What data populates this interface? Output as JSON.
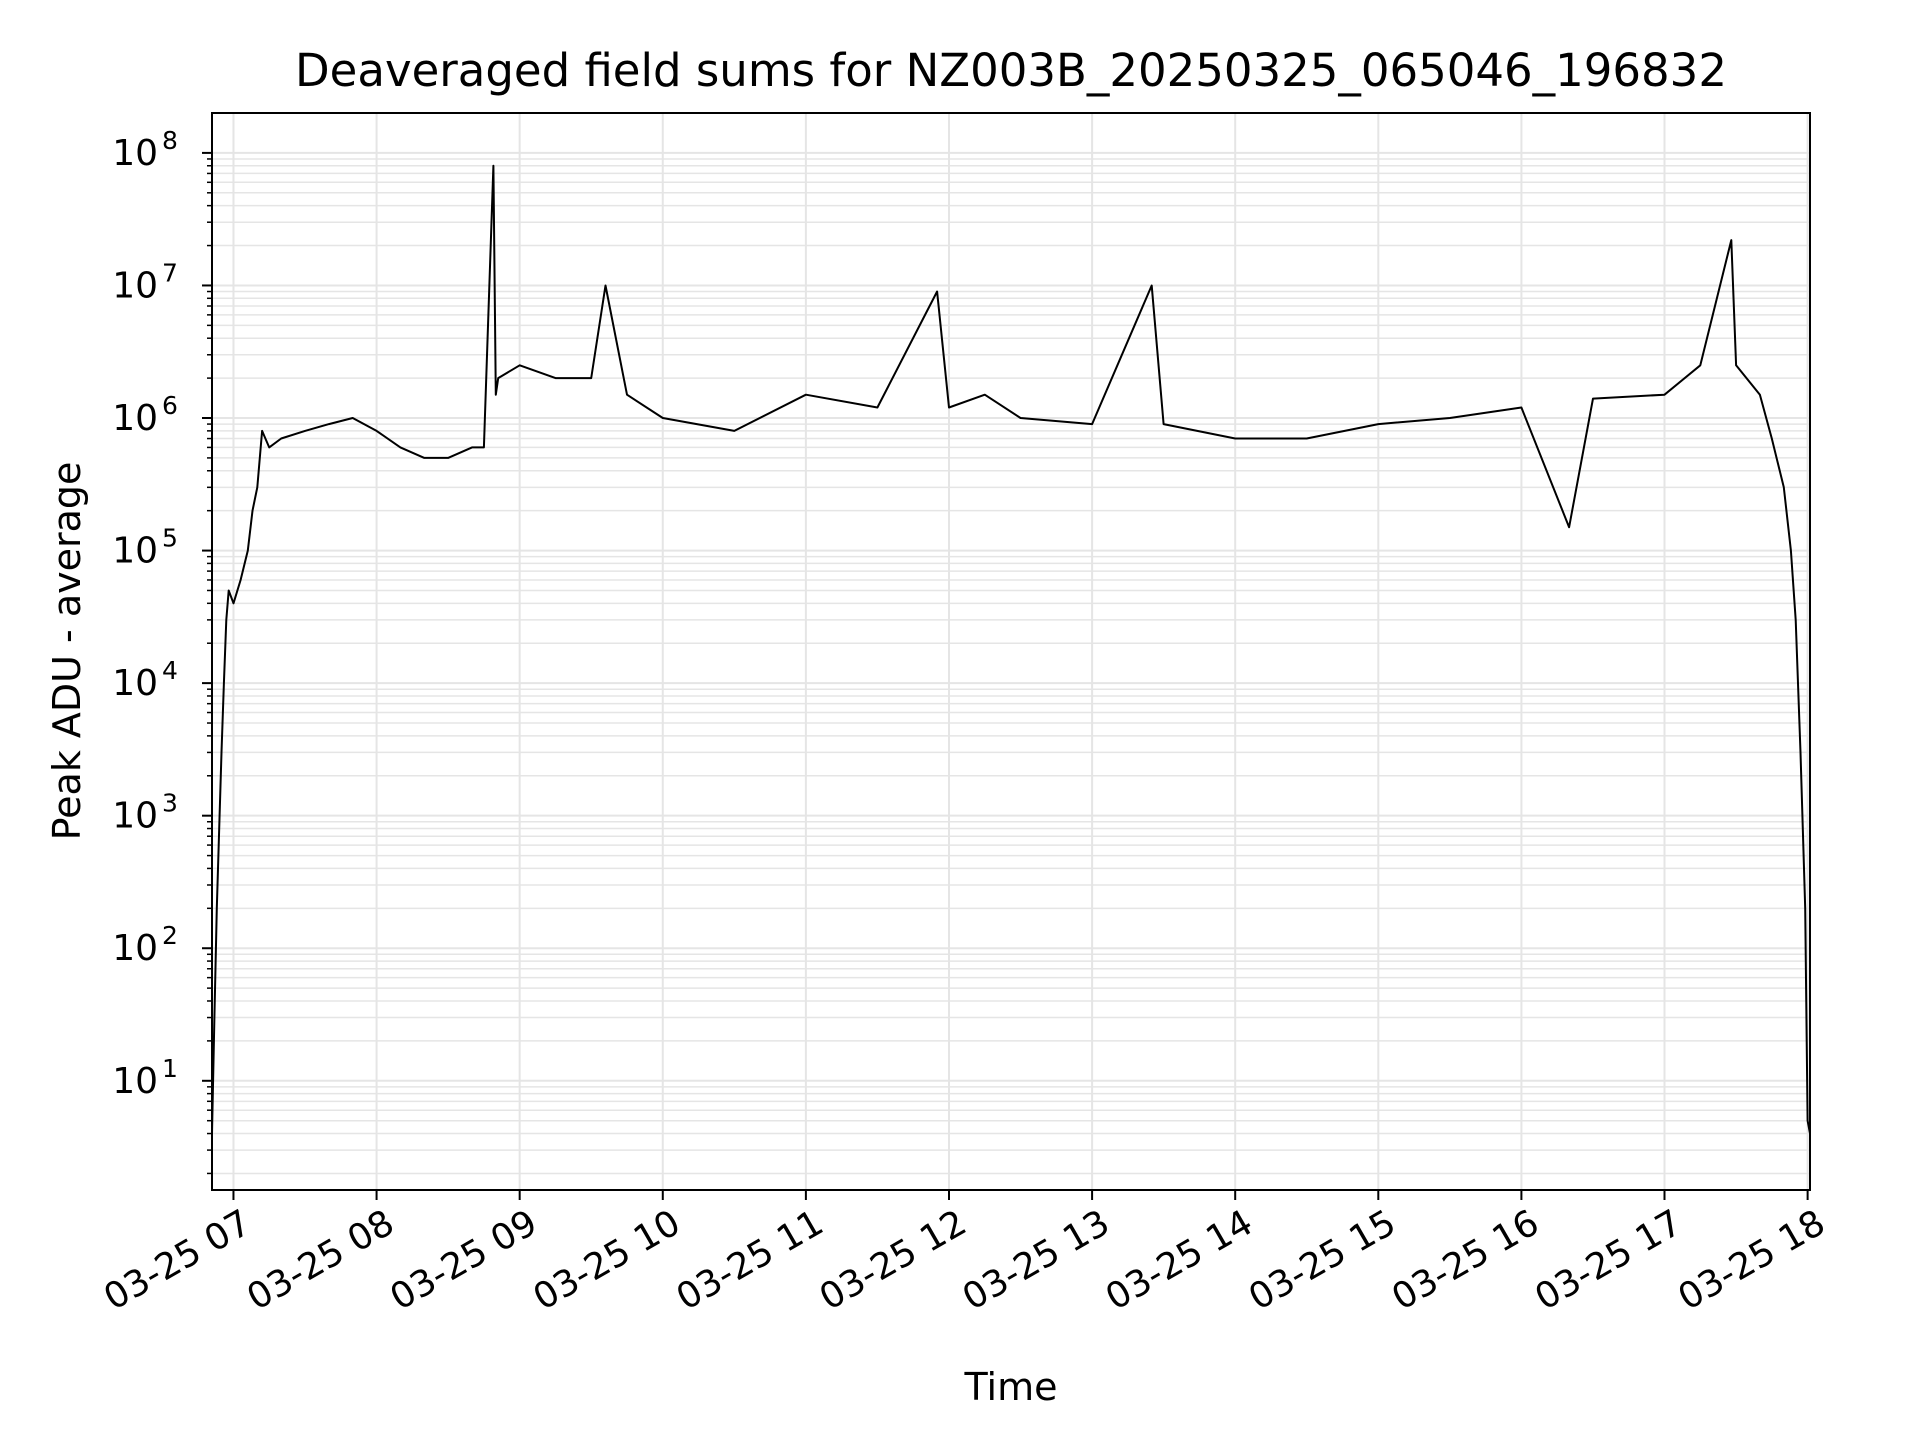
{
  "chart_data": {
    "type": "line",
    "title": "Deaveraged field sums for NZ003B_20250325_065046_196832",
    "xlabel": "Time",
    "ylabel": "Peak ADU - average",
    "yscale": "log",
    "grid": true,
    "legend": "none",
    "line_color": "#000000",
    "grid_color": "#e5e5e5",
    "xlim": [
      "2025-03-25 06:51",
      "2025-03-25 18:01"
    ],
    "ylim": [
      1.5,
      200000000
    ],
    "x_ticks": [
      {
        "value": "2025-03-25 07:00",
        "label": "03-25 07"
      },
      {
        "value": "2025-03-25 08:00",
        "label": "03-25 08"
      },
      {
        "value": "2025-03-25 09:00",
        "label": "03-25 09"
      },
      {
        "value": "2025-03-25 10:00",
        "label": "03-25 10"
      },
      {
        "value": "2025-03-25 11:00",
        "label": "03-25 11"
      },
      {
        "value": "2025-03-25 12:00",
        "label": "03-25 12"
      },
      {
        "value": "2025-03-25 13:00",
        "label": "03-25 13"
      },
      {
        "value": "2025-03-25 14:00",
        "label": "03-25 14"
      },
      {
        "value": "2025-03-25 15:00",
        "label": "03-25 15"
      },
      {
        "value": "2025-03-25 16:00",
        "label": "03-25 16"
      },
      {
        "value": "2025-03-25 17:00",
        "label": "03-25 17"
      },
      {
        "value": "2025-03-25 18:00",
        "label": "03-25 18"
      }
    ],
    "y_ticks": [
      {
        "value": 10,
        "base": "10",
        "exp": "1"
      },
      {
        "value": 100,
        "base": "10",
        "exp": "2"
      },
      {
        "value": 1000,
        "base": "10",
        "exp": "3"
      },
      {
        "value": 10000,
        "base": "10",
        "exp": "4"
      },
      {
        "value": 100000,
        "base": "10",
        "exp": "5"
      },
      {
        "value": 1000000,
        "base": "10",
        "exp": "6"
      },
      {
        "value": 10000000,
        "base": "10",
        "exp": "7"
      },
      {
        "value": 100000000,
        "base": "10",
        "exp": "8"
      }
    ],
    "series": [
      {
        "x": [
          "2025-03-25 06:51",
          "2025-03-25 06:52",
          "2025-03-25 06:53",
          "2025-03-25 06:54",
          "2025-03-25 06:55",
          "2025-03-25 06:56",
          "2025-03-25 06:57",
          "2025-03-25 06:58",
          "2025-03-25 07:00",
          "2025-03-25 07:03",
          "2025-03-25 07:06",
          "2025-03-25 07:08",
          "2025-03-25 07:10",
          "2025-03-25 07:12",
          "2025-03-25 07:15",
          "2025-03-25 07:20",
          "2025-03-25 07:30",
          "2025-03-25 07:40",
          "2025-03-25 07:50",
          "2025-03-25 08:00",
          "2025-03-25 08:10",
          "2025-03-25 08:20",
          "2025-03-25 08:30",
          "2025-03-25 08:40",
          "2025-03-25 08:45",
          "2025-03-25 08:49",
          "2025-03-25 08:50",
          "2025-03-25 08:51",
          "2025-03-25 09:00",
          "2025-03-25 09:15",
          "2025-03-25 09:30",
          "2025-03-25 09:36",
          "2025-03-25 09:45",
          "2025-03-25 10:00",
          "2025-03-25 10:30",
          "2025-03-25 11:00",
          "2025-03-25 11:30",
          "2025-03-25 11:55",
          "2025-03-25 12:00",
          "2025-03-25 12:15",
          "2025-03-25 12:30",
          "2025-03-25 13:00",
          "2025-03-25 13:25",
          "2025-03-25 13:30",
          "2025-03-25 14:00",
          "2025-03-25 14:30",
          "2025-03-25 15:00",
          "2025-03-25 15:30",
          "2025-03-25 16:00",
          "2025-03-25 16:20",
          "2025-03-25 16:30",
          "2025-03-25 17:00",
          "2025-03-25 17:15",
          "2025-03-25 17:28",
          "2025-03-25 17:30",
          "2025-03-25 17:40",
          "2025-03-25 17:45",
          "2025-03-25 17:50",
          "2025-03-25 17:53",
          "2025-03-25 17:55",
          "2025-03-25 17:57",
          "2025-03-25 17:59",
          "2025-03-25 18:00",
          "2025-03-25 18:01"
        ],
        "y": [
          4,
          30,
          200,
          800,
          3000,
          10000,
          30000,
          50000,
          40000,
          60000,
          100000,
          200000,
          300000,
          800000,
          600000,
          700000,
          800000,
          900000,
          1000000,
          800000,
          600000,
          500000,
          500000,
          600000,
          600000,
          80000000,
          1500000,
          2000000,
          2500000,
          2000000,
          2000000,
          10000000,
          1500000,
          1000000,
          800000,
          1500000,
          1200000,
          9000000,
          1200000,
          1500000,
          1000000,
          900000,
          10000000,
          900000,
          700000,
          700000,
          900000,
          1000000,
          1200000,
          150000,
          1400000,
          1500000,
          2500000,
          22000000,
          2500000,
          1500000,
          700000,
          300000,
          100000,
          30000,
          3000,
          200,
          5,
          4
        ]
      }
    ]
  }
}
